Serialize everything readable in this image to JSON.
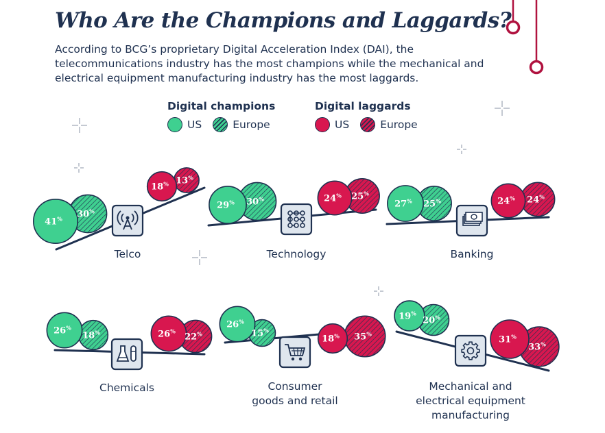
{
  "title": "Who Are the Champions and Laggards?",
  "subtitle": "According to BCG’s proprietary Digital Acceleration Index (DAI), the telecommunications industry has the most champions while the mechanical and electrical equipment manufacturing industry has the most laggards.",
  "legend": {
    "champions_title": "Digital champions",
    "laggards_title": "Digital laggards",
    "us_label": "US",
    "europe_label": "Europe"
  },
  "colors": {
    "champion": "#3fd090",
    "laggard": "#d8174f",
    "navy": "#1f3150",
    "accent": "#b0123f"
  },
  "chart_data": {
    "type": "bubble",
    "unit": "%",
    "series": [
      "Digital champions – US",
      "Digital champions – Europe",
      "Digital laggards – US",
      "Digital laggards – Europe"
    ],
    "industries": [
      {
        "name": "Telco",
        "label_lines": [
          "Telco"
        ],
        "icon": "antenna-icon",
        "champions": {
          "us": 41,
          "europe": 30
        },
        "laggards": {
          "us": 18,
          "europe": 13
        }
      },
      {
        "name": "Technology",
        "label_lines": [
          "Technology"
        ],
        "icon": "circuit-icon",
        "champions": {
          "us": 29,
          "europe": 30
        },
        "laggards": {
          "us": 24,
          "europe": 25
        }
      },
      {
        "name": "Banking",
        "label_lines": [
          "Banking"
        ],
        "icon": "cash-icon",
        "champions": {
          "us": 27,
          "europe": 25
        },
        "laggards": {
          "us": 24,
          "europe": 24
        }
      },
      {
        "name": "Chemicals",
        "label_lines": [
          "Chemicals"
        ],
        "icon": "flask-icon",
        "champions": {
          "us": 26,
          "europe": 18
        },
        "laggards": {
          "us": 26,
          "europe": 22
        }
      },
      {
        "name": "Consumer goods and retail",
        "label_lines": [
          "Consumer",
          "goods and retail"
        ],
        "icon": "cart-icon",
        "champions": {
          "us": 26,
          "europe": 15
        },
        "laggards": {
          "us": 18,
          "europe": 35
        }
      },
      {
        "name": "Mechanical and electrical equipment manufacturing",
        "label_lines": [
          "Mechanical and",
          "electrical equipment",
          "manufacturing"
        ],
        "icon": "gear-icon",
        "champions": {
          "us": 19,
          "europe": 20
        },
        "laggards": {
          "us": 31,
          "europe": 33
        }
      }
    ]
  }
}
